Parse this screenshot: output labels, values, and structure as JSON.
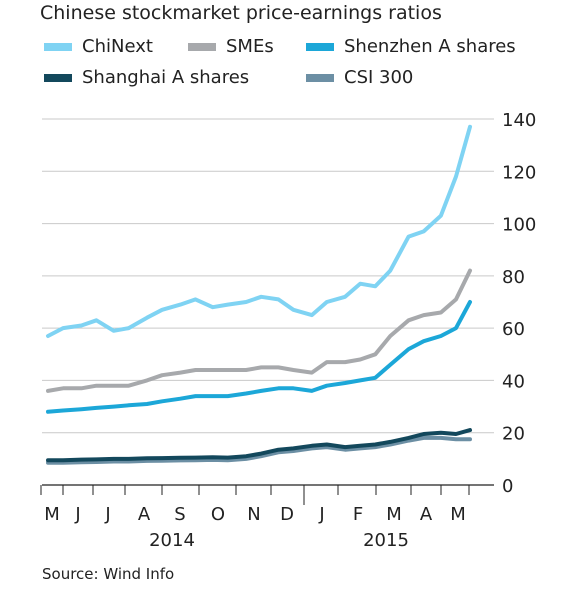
{
  "chart_data": {
    "type": "line",
    "title": "Chinese stockmarket price-earnings ratios",
    "source": "Source: Wind Info",
    "ylim": [
      0,
      140
    ],
    "yticks": [
      "0",
      "20",
      "40",
      "60",
      "80",
      "100",
      "120",
      "140"
    ],
    "grid": true,
    "legend_position": "top",
    "x_month_labels": [
      "M",
      "J",
      "J",
      "A",
      "S",
      "O",
      "N",
      "D",
      "J",
      "F",
      "M",
      "A",
      "M"
    ],
    "x_year_labels": [
      "2014",
      "2015"
    ],
    "x_dates": [
      "2014-05-01",
      "2014-05-15",
      "2014-06-01",
      "2014-06-15",
      "2014-07-01",
      "2014-07-15",
      "2014-08-01",
      "2014-08-15",
      "2014-09-01",
      "2014-09-15",
      "2014-10-01",
      "2014-10-15",
      "2014-11-01",
      "2014-11-15",
      "2014-12-01",
      "2014-12-15",
      "2015-01-01",
      "2015-01-15",
      "2015-02-01",
      "2015-02-15",
      "2015-03-01",
      "2015-03-15",
      "2015-04-01",
      "2015-04-15",
      "2015-05-01",
      "2015-05-15",
      "2015-05-28"
    ],
    "series": [
      {
        "name": "ChiNext",
        "color": "#7fd3f3",
        "values": [
          57,
          60,
          61,
          63,
          59,
          60,
          64,
          67,
          69,
          71,
          68,
          69,
          70,
          72,
          71,
          67,
          65,
          70,
          72,
          77,
          76,
          82,
          95,
          97,
          103,
          118,
          137
        ]
      },
      {
        "name": "SMEs",
        "color": "#a7a9ac",
        "values": [
          36,
          37,
          37,
          38,
          38,
          38,
          40,
          42,
          43,
          44,
          44,
          44,
          44,
          45,
          45,
          44,
          43,
          47,
          47,
          48,
          50,
          57,
          63,
          65,
          66,
          71,
          82
        ]
      },
      {
        "name": "Shenzhen A shares",
        "color": "#1ca7d8",
        "values": [
          28,
          28.5,
          29,
          29.5,
          30,
          30.5,
          31,
          32,
          33,
          34,
          34,
          34,
          35,
          36,
          37,
          37,
          36,
          38,
          39,
          40,
          41,
          46,
          52,
          55,
          57,
          60,
          70
        ]
      },
      {
        "name": "Shanghai A shares",
        "color": "#13485c",
        "values": [
          9.5,
          9.5,
          9.7,
          9.8,
          10,
          10,
          10.2,
          10.3,
          10.4,
          10.5,
          10.6,
          10.5,
          11,
          12,
          13.5,
          14,
          15,
          15.5,
          14.5,
          15,
          15.5,
          16.5,
          18,
          19.5,
          20,
          19.5,
          21
        ]
      },
      {
        "name": "CSI 300",
        "color": "#6c8fa4",
        "values": [
          8.5,
          8.5,
          8.7,
          8.8,
          9,
          9,
          9.2,
          9.3,
          9.4,
          9.5,
          9.6,
          9.5,
          10,
          11,
          12.5,
          13,
          14,
          14.5,
          13.5,
          14,
          14.5,
          15.5,
          17,
          18,
          18,
          17.5,
          17.5
        ]
      }
    ]
  }
}
